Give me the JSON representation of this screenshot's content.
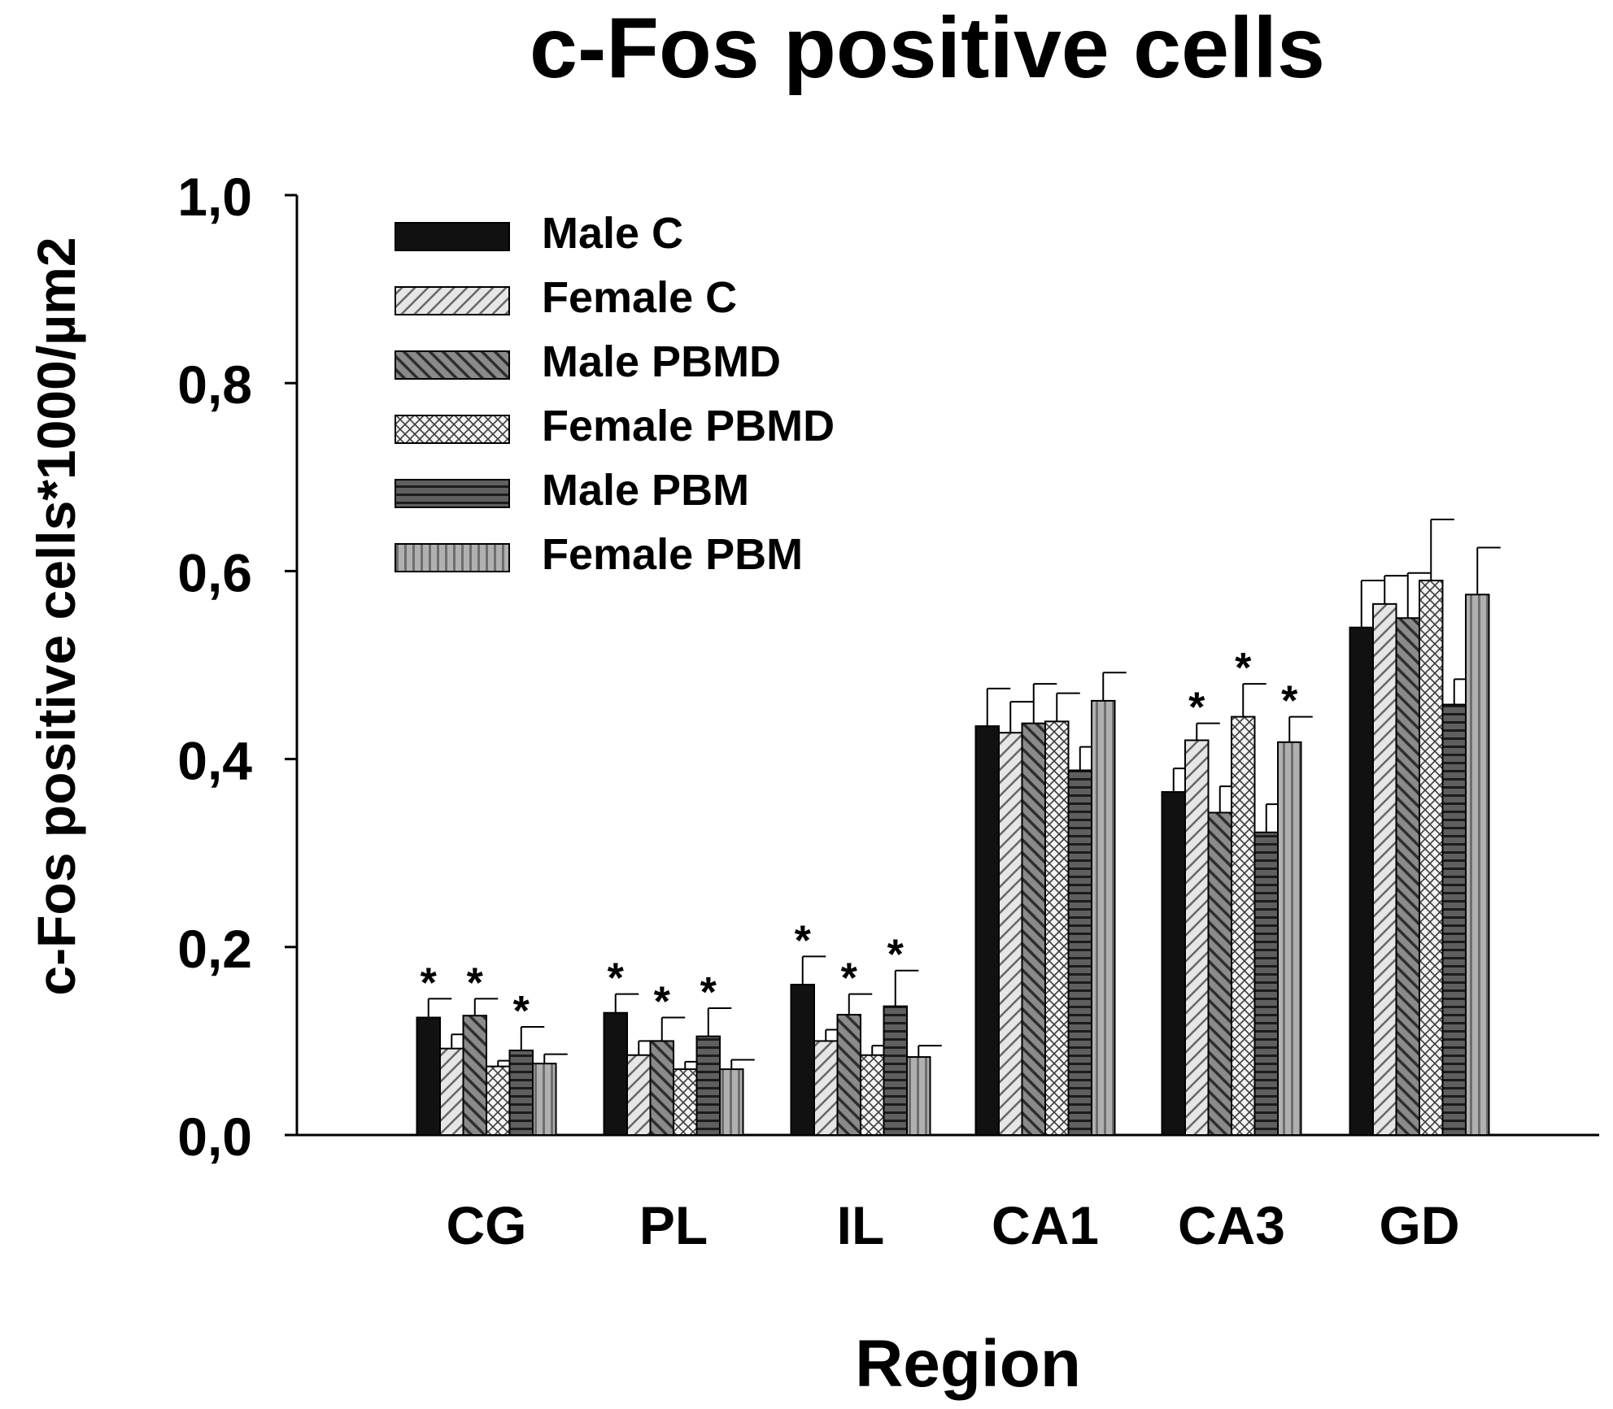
{
  "chart_data": {
    "type": "bar",
    "title": "c-Fos positive cells",
    "xlabel": "Region",
    "ylabel": "c-Fos positive cells*1000/µm2",
    "categories": [
      "CG",
      "PL",
      "IL",
      "CA1",
      "CA3",
      "GD"
    ],
    "ylim": [
      0,
      1.0
    ],
    "yticks": [
      {
        "value": 0.0,
        "label": "0,0"
      },
      {
        "value": 0.2,
        "label": "0,2"
      },
      {
        "value": 0.4,
        "label": "0,4"
      },
      {
        "value": 0.6,
        "label": "0,6"
      },
      {
        "value": 0.8,
        "label": "0,8"
      },
      {
        "value": 1.0,
        "label": "1,0"
      }
    ],
    "legend_position": "top-left",
    "significance_marker": "*",
    "series": [
      {
        "name": "Male C",
        "pattern": "solid-black",
        "values": [
          0.125,
          0.13,
          0.16,
          0.435,
          0.365,
          0.54
        ],
        "errors": [
          0.02,
          0.02,
          0.03,
          0.04,
          0.025,
          0.05
        ],
        "significant": [
          true,
          true,
          true,
          false,
          false,
          false
        ]
      },
      {
        "name": "Female C",
        "pattern": "hatch-light",
        "values": [
          0.092,
          0.085,
          0.1,
          0.428,
          0.42,
          0.565
        ],
        "errors": [
          0.015,
          0.015,
          0.012,
          0.033,
          0.018,
          0.03
        ],
        "significant": [
          false,
          false,
          false,
          false,
          true,
          false
        ]
      },
      {
        "name": "Male PBMD",
        "pattern": "hatch-dark",
        "values": [
          0.127,
          0.1,
          0.128,
          0.438,
          0.343,
          0.55
        ],
        "errors": [
          0.018,
          0.025,
          0.022,
          0.042,
          0.028,
          0.048
        ],
        "significant": [
          true,
          true,
          true,
          false,
          false,
          false
        ]
      },
      {
        "name": "Female PBMD",
        "pattern": "crosshatch",
        "values": [
          0.073,
          0.07,
          0.085,
          0.44,
          0.445,
          0.59
        ],
        "errors": [
          0.006,
          0.008,
          0.01,
          0.03,
          0.035,
          0.065
        ],
        "significant": [
          false,
          false,
          false,
          false,
          true,
          false
        ]
      },
      {
        "name": "Male PBM",
        "pattern": "stripes-dark",
        "values": [
          0.09,
          0.105,
          0.137,
          0.388,
          0.322,
          0.458
        ],
        "errors": [
          0.025,
          0.03,
          0.038,
          0.025,
          0.03,
          0.027
        ],
        "significant": [
          true,
          true,
          true,
          false,
          false,
          false
        ]
      },
      {
        "name": "Female PBM",
        "pattern": "stripes-light",
        "values": [
          0.076,
          0.07,
          0.083,
          0.462,
          0.418,
          0.575
        ],
        "errors": [
          0.01,
          0.01,
          0.012,
          0.03,
          0.027,
          0.05
        ],
        "significant": [
          false,
          false,
          false,
          false,
          true,
          false
        ]
      }
    ]
  }
}
